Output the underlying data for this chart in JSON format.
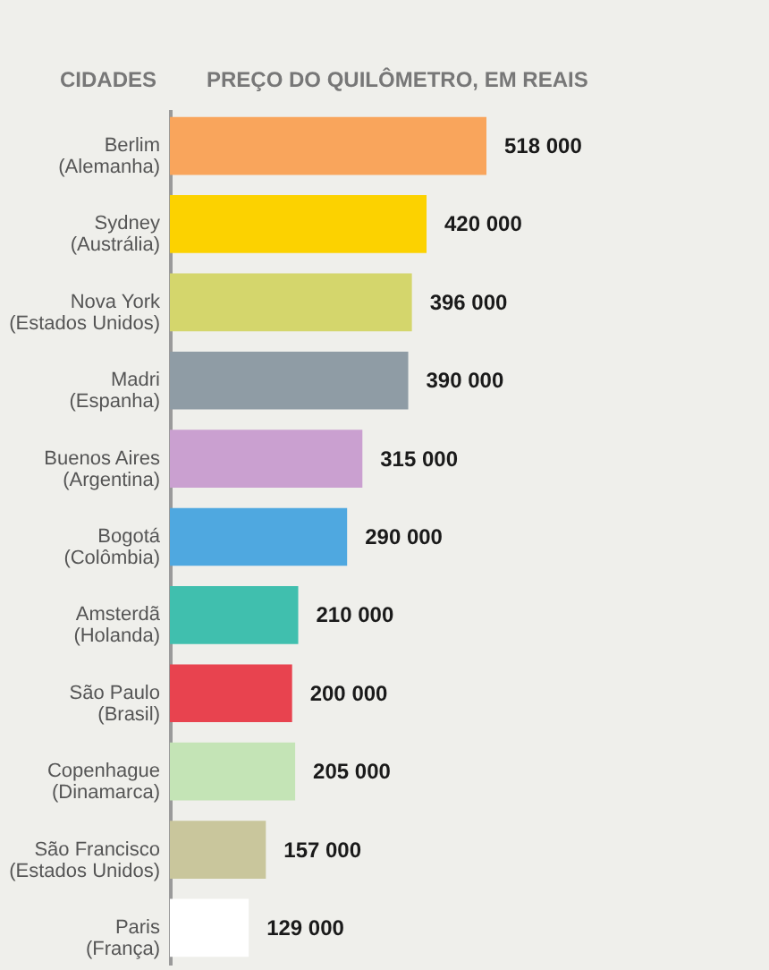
{
  "chart_data": {
    "type": "bar",
    "orientation": "horizontal",
    "xlabel": "PREÇO DO QUILÔMETRO, EM REAIS",
    "ylabel": "CIDADES",
    "categories": [
      "Berlim\n(Alemanha)",
      "Sydney\n(Austrália)",
      "Nova York\n(Estados Unidos)",
      "Madri\n(Espanha)",
      "Buenos Aires\n(Argentina)",
      "Bogotá\n(Colômbia)",
      "Amsterdã\n(Holanda)",
      "São Paulo\n(Brasil)",
      "Copenhague\n(Dinamarca)",
      "São Francisco\n(Estados Unidos)",
      "Paris\n(França)"
    ],
    "values": [
      518000,
      420000,
      396000,
      390000,
      315000,
      290000,
      210000,
      200000,
      205000,
      157000,
      129000
    ],
    "value_labels": [
      "518 000",
      "420 000",
      "396 000",
      "390 000",
      "315 000",
      "290 000",
      "210 000",
      "200 000",
      "205 000",
      "157 000",
      "129 000"
    ],
    "colors": [
      "#f9a55c",
      "#fcd200",
      "#d4d66c",
      "#8f9ca5",
      "#caa0d0",
      "#4fa8e0",
      "#40bfae",
      "#e8434f",
      "#c4e4b6",
      "#c9c69c",
      "#ffffff"
    ],
    "tick_labels": "y"
  }
}
